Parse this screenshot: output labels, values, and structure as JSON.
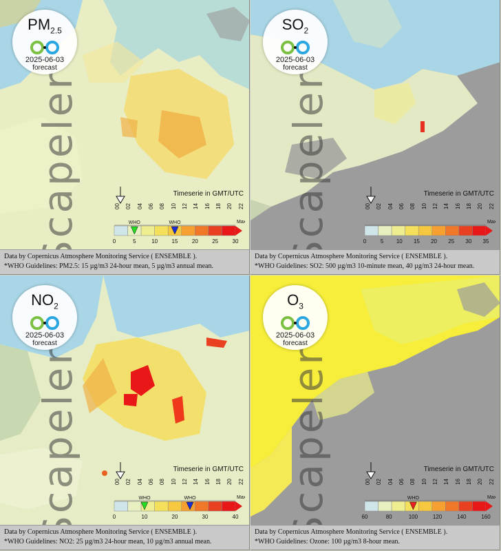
{
  "panels": [
    {
      "pollutant": "PM",
      "pollutant_sub": "2.5",
      "date": "2025-06-03",
      "forecast_label": "forecast",
      "watermark": "Scapeler",
      "timeserie_label": "Timeserie in GMT/UTC",
      "hours": [
        "00",
        "02",
        "04",
        "06",
        "08",
        "10",
        "12",
        "14",
        "16",
        "18",
        "20",
        "22"
      ],
      "scale_ticks": [
        "0",
        "5",
        "10",
        "15",
        "20",
        "25",
        "30"
      ],
      "scale_max_label": "Max",
      "who_labels": [
        "WHO",
        "WHO"
      ],
      "who_values": [
        5,
        15
      ],
      "scale_max": 30,
      "footer_line1": "Data by Copernicus Atmosphere Monitoring Service ( ENSEMBLE ).",
      "footer_line2": "*WHO Guidelines: PM2.5: 15 µg/m3 24-hour mean, 5 µg/m3 annual mean."
    },
    {
      "pollutant": "SO",
      "pollutant_sub": "2",
      "date": "2025-06-03",
      "forecast_label": "forecast",
      "watermark": "Scapeler",
      "timeserie_label": "Timeserie in GMT/UTC",
      "hours": [
        "00",
        "02",
        "04",
        "06",
        "08",
        "10",
        "12",
        "14",
        "16",
        "18",
        "20",
        "22"
      ],
      "scale_ticks": [
        "0",
        "5",
        "10",
        "15",
        "20",
        "25",
        "30",
        "35"
      ],
      "scale_max_label": "Max",
      "who_labels": [],
      "who_values": [],
      "scale_max": 35,
      "footer_line1": "Data by Copernicus Atmosphere Monitoring Service ( ENSEMBLE ).",
      "footer_line2": "*WHO Guidelines: SO2: 500 µg/m3 10-minute mean, 40 µg/m3 24-hour mean."
    },
    {
      "pollutant": "NO",
      "pollutant_sub": "2",
      "date": "2025-06-03",
      "forecast_label": "forecast",
      "watermark": "Scapeler",
      "timeserie_label": "Timeserie in GMT/UTC",
      "hours": [
        "00",
        "02",
        "04",
        "06",
        "08",
        "10",
        "12",
        "14",
        "16",
        "18",
        "20",
        "22"
      ],
      "scale_ticks": [
        "0",
        "10",
        "20",
        "30",
        "40"
      ],
      "scale_max_label": "Max",
      "who_labels": [
        "WHO",
        "WHO"
      ],
      "who_values": [
        10,
        25
      ],
      "scale_max": 40,
      "footer_line1": "Data by Copernicus Atmosphere Monitoring Service ( ENSEMBLE ).",
      "footer_line2": "*WHO Guidelines: NO2: 25 µg/m3 24-hour mean, 10 µg/m3 annual mean."
    },
    {
      "pollutant": "O",
      "pollutant_sub": "3",
      "date": "2025-06-03",
      "forecast_label": "forecast",
      "watermark": "Scapeler",
      "timeserie_label": "Timeserie in GMT/UTC",
      "hours": [
        "00",
        "02",
        "04",
        "06",
        "08",
        "10",
        "12",
        "14",
        "16",
        "18",
        "20",
        "22"
      ],
      "scale_ticks": [
        "60",
        "80",
        "100",
        "120",
        "140",
        "160"
      ],
      "scale_max_label": "Max",
      "who_labels": [
        "WHO"
      ],
      "who_values": [
        100
      ],
      "scale_min": 60,
      "scale_max": 160,
      "footer_line1": "Data by Copernicus Atmosphere Monitoring Service ( ENSEMBLE ).",
      "footer_line2": "*WHO Guidelines: Ozone: 100 µg/m3 8-hour mean."
    }
  ],
  "colors": {
    "sea": "#a9d6e6",
    "land_gray": "#9a9a9a",
    "low": "#e8efc0",
    "mid": "#f4e05a",
    "high": "#f5a030",
    "peak": "#e81818",
    "who_green": "#22dd22",
    "who_blue": "#1a2ed8"
  }
}
